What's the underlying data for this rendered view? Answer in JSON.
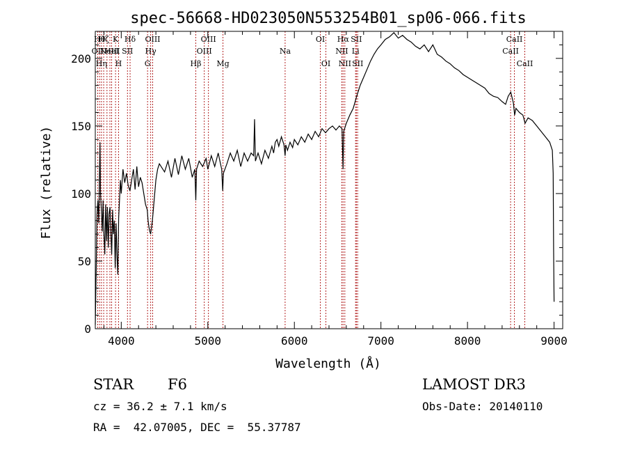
{
  "chart_data": {
    "type": "line",
    "title": "spec-56668-HD023050N553254B01_sp06-066.fits",
    "xlabel": "Wavelength (Å)",
    "ylabel": "Flux (relative)",
    "xlim": [
      3700,
      9100
    ],
    "ylim": [
      0,
      220
    ],
    "xticks": [
      "4000",
      "5000",
      "6000",
      "7000",
      "8000",
      "9000"
    ],
    "yticks": [
      "0",
      "50",
      "100",
      "150",
      "200"
    ],
    "grid": false,
    "series": [
      {
        "points": [
          [
            3700,
            3
          ],
          [
            3710,
            40
          ],
          [
            3720,
            85
          ],
          [
            3730,
            95
          ],
          [
            3740,
            78
          ],
          [
            3750,
            120
          ],
          [
            3755,
            138
          ],
          [
            3760,
            100
          ],
          [
            3770,
            88
          ],
          [
            3780,
            72
          ],
          [
            3790,
            95
          ],
          [
            3800,
            70
          ],
          [
            3810,
            55
          ],
          [
            3820,
            92
          ],
          [
            3830,
            65
          ],
          [
            3840,
            90
          ],
          [
            3850,
            60
          ],
          [
            3860,
            85
          ],
          [
            3870,
            90
          ],
          [
            3880,
            70
          ],
          [
            3890,
            55
          ],
          [
            3900,
            88
          ],
          [
            3910,
            70
          ],
          [
            3920,
            80
          ],
          [
            3930,
            45
          ],
          [
            3940,
            78
          ],
          [
            3950,
            55
          ],
          [
            3960,
            40
          ],
          [
            3970,
            82
          ],
          [
            3980,
            95
          ],
          [
            3990,
            110
          ],
          [
            4000,
            100
          ],
          [
            4020,
            118
          ],
          [
            4040,
            108
          ],
          [
            4060,
            115
          ],
          [
            4080,
            106
          ],
          [
            4100,
            102
          ],
          [
            4120,
            110
          ],
          [
            4140,
            118
          ],
          [
            4160,
            103
          ],
          [
            4180,
            120
          ],
          [
            4200,
            105
          ],
          [
            4220,
            112
          ],
          [
            4240,
            108
          ],
          [
            4260,
            100
          ],
          [
            4280,
            92
          ],
          [
            4300,
            88
          ],
          [
            4310,
            80
          ],
          [
            4320,
            75
          ],
          [
            4330,
            72
          ],
          [
            4340,
            70
          ],
          [
            4360,
            80
          ],
          [
            4380,
            95
          ],
          [
            4400,
            110
          ],
          [
            4420,
            118
          ],
          [
            4440,
            122
          ],
          [
            4460,
            120
          ],
          [
            4500,
            116
          ],
          [
            4540,
            124
          ],
          [
            4580,
            112
          ],
          [
            4620,
            126
          ],
          [
            4660,
            114
          ],
          [
            4700,
            128
          ],
          [
            4740,
            118
          ],
          [
            4780,
            126
          ],
          [
            4820,
            112
          ],
          [
            4850,
            118
          ],
          [
            4861,
            95
          ],
          [
            4870,
            118
          ],
          [
            4900,
            124
          ],
          [
            4940,
            120
          ],
          [
            4980,
            126
          ],
          [
            5000,
            118
          ],
          [
            5040,
            128
          ],
          [
            5080,
            120
          ],
          [
            5120,
            130
          ],
          [
            5160,
            118
          ],
          [
            5172,
            102
          ],
          [
            5180,
            115
          ],
          [
            5220,
            122
          ],
          [
            5260,
            130
          ],
          [
            5300,
            124
          ],
          [
            5340,
            132
          ],
          [
            5380,
            120
          ],
          [
            5420,
            130
          ],
          [
            5460,
            124
          ],
          [
            5500,
            130
          ],
          [
            5530,
            128
          ],
          [
            5540,
            155
          ],
          [
            5550,
            124
          ],
          [
            5580,
            130
          ],
          [
            5620,
            122
          ],
          [
            5660,
            132
          ],
          [
            5700,
            126
          ],
          [
            5740,
            135
          ],
          [
            5760,
            130
          ],
          [
            5780,
            138
          ],
          [
            5800,
            140
          ],
          [
            5820,
            135
          ],
          [
            5850,
            142
          ],
          [
            5880,
            136
          ],
          [
            5893,
            128
          ],
          [
            5900,
            136
          ],
          [
            5920,
            132
          ],
          [
            5950,
            138
          ],
          [
            5980,
            134
          ],
          [
            6000,
            140
          ],
          [
            6040,
            136
          ],
          [
            6080,
            142
          ],
          [
            6120,
            138
          ],
          [
            6160,
            144
          ],
          [
            6200,
            140
          ],
          [
            6240,
            146
          ],
          [
            6280,
            142
          ],
          [
            6320,
            148
          ],
          [
            6360,
            145
          ],
          [
            6400,
            148
          ],
          [
            6440,
            150
          ],
          [
            6480,
            147
          ],
          [
            6520,
            150
          ],
          [
            6550,
            148
          ],
          [
            6562,
            118
          ],
          [
            6570,
            146
          ],
          [
            6600,
            152
          ],
          [
            6640,
            158
          ],
          [
            6680,
            163
          ],
          [
            6720,
            172
          ],
          [
            6760,
            180
          ],
          [
            6800,
            186
          ],
          [
            6840,
            192
          ],
          [
            6880,
            198
          ],
          [
            6920,
            203
          ],
          [
            6960,
            207
          ],
          [
            7000,
            210
          ],
          [
            7050,
            214
          ],
          [
            7100,
            216
          ],
          [
            7150,
            219
          ],
          [
            7200,
            215
          ],
          [
            7250,
            217
          ],
          [
            7300,
            214
          ],
          [
            7350,
            212
          ],
          [
            7400,
            209
          ],
          [
            7450,
            207
          ],
          [
            7500,
            210
          ],
          [
            7550,
            205
          ],
          [
            7600,
            210
          ],
          [
            7650,
            203
          ],
          [
            7700,
            201
          ],
          [
            7750,
            198
          ],
          [
            7800,
            196
          ],
          [
            7850,
            193
          ],
          [
            7900,
            191
          ],
          [
            7950,
            188
          ],
          [
            8000,
            186
          ],
          [
            8050,
            184
          ],
          [
            8100,
            182
          ],
          [
            8150,
            180
          ],
          [
            8200,
            178
          ],
          [
            8250,
            174
          ],
          [
            8300,
            172
          ],
          [
            8350,
            171
          ],
          [
            8400,
            168
          ],
          [
            8440,
            166
          ],
          [
            8470,
            172
          ],
          [
            8500,
            175
          ],
          [
            8530,
            167
          ],
          [
            8545,
            158
          ],
          [
            8560,
            163
          ],
          [
            8600,
            160
          ],
          [
            8640,
            158
          ],
          [
            8665,
            152
          ],
          [
            8700,
            156
          ],
          [
            8750,
            154
          ],
          [
            8800,
            150
          ],
          [
            8850,
            146
          ],
          [
            8900,
            142
          ],
          [
            8950,
            138
          ],
          [
            8980,
            132
          ],
          [
            8990,
            115
          ],
          [
            8995,
            60
          ],
          [
            9000,
            20
          ]
        ]
      }
    ],
    "lines": [
      {
        "w": 3728,
        "label": "OII",
        "row": 2
      },
      {
        "w": 3750,
        "label": "Hθ",
        "row": 1
      },
      {
        "w": 3771,
        "label": "Hη",
        "row": 3
      },
      {
        "w": 3797,
        "label": "Hζ",
        "row": 0
      },
      {
        "w": 3835,
        "label": "",
        "row": -1
      },
      {
        "w": 3869,
        "label": "NeIII",
        "row": 2
      },
      {
        "w": 3889,
        "label": "HeI",
        "row": 2
      },
      {
        "w": 3934,
        "label": "K",
        "row": 1
      },
      {
        "w": 3969,
        "label": "H",
        "row": 3
      },
      {
        "w": 4072,
        "label": "SII",
        "row": 2
      },
      {
        "w": 4102,
        "label": "Hδ",
        "row": 1
      },
      {
        "w": 4304,
        "label": "G",
        "row": 3
      },
      {
        "w": 4340,
        "label": "Hγ",
        "row": 2
      },
      {
        "w": 4363,
        "label": "OIII",
        "row": 1
      },
      {
        "w": 4861,
        "label": "Hβ",
        "row": 3
      },
      {
        "w": 4959,
        "label": "OIII",
        "row": 2
      },
      {
        "w": 5007,
        "label": "OIII",
        "row": 1
      },
      {
        "w": 5175,
        "label": "Mg",
        "row": 3
      },
      {
        "w": 5893,
        "label": "Na",
        "row": 2
      },
      {
        "w": 6300,
        "label": "OI",
        "row": 1
      },
      {
        "w": 6364,
        "label": "OI",
        "row": 3
      },
      {
        "w": 6548,
        "label": "NII",
        "row": 2
      },
      {
        "w": 6563,
        "label": "Hα",
        "row": 1
      },
      {
        "w": 6583,
        "label": "NII",
        "row": 3
      },
      {
        "w": 6707,
        "label": "Li",
        "row": 2
      },
      {
        "w": 6716,
        "label": "SII",
        "row": 1
      },
      {
        "w": 6731,
        "label": "SII",
        "row": 3
      },
      {
        "w": 8498,
        "label": "CaII",
        "row": 2
      },
      {
        "w": 8542,
        "label": "CaII",
        "row": 1
      },
      {
        "w": 8662,
        "label": "CaII",
        "row": 3
      }
    ]
  },
  "info": {
    "object_class": "STAR",
    "subclass": "F6",
    "survey": "LAMOST DR3",
    "redshift": "cz = 36.2 ± 7.1 km/s",
    "obs_date": "Obs-Date: 20140110",
    "coords": "RA =  42.07005, DEC =  55.37787"
  },
  "colors": {
    "line": "#000000",
    "marker_lines": "#b22222"
  }
}
